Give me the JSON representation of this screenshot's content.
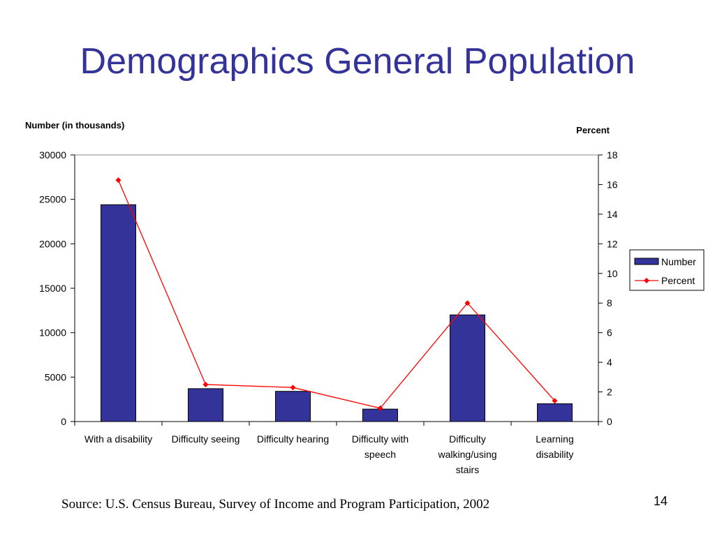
{
  "slide": {
    "title": "Demographics General Population",
    "source": "Source: U.S. Census Bureau, Survey of Income and Program Participation, 2002",
    "page_number": "14"
  },
  "chart_data": {
    "type": "bar+line",
    "categories": [
      [
        "With a disability"
      ],
      [
        "Difficulty seeing"
      ],
      [
        "Difficulty hearing"
      ],
      [
        "Difficulty with",
        "speech"
      ],
      [
        "Difficulty",
        "walking/using",
        "stairs"
      ],
      [
        "Learning",
        "disability"
      ]
    ],
    "series": [
      {
        "name": "Number",
        "type": "bar",
        "axis": "left",
        "color": "#333399",
        "values": [
          24400,
          3700,
          3400,
          1400,
          12000,
          2000
        ]
      },
      {
        "name": "Percent",
        "type": "line",
        "axis": "right",
        "color": "#ff0000",
        "values": [
          16.3,
          2.5,
          2.3,
          0.9,
          8.0,
          1.4
        ]
      }
    ],
    "ylabel_left": "Number (in thousands)",
    "ylabel_right": "Percent",
    "ylim_left": [
      0,
      30000
    ],
    "yticks_left": [
      0,
      5000,
      10000,
      15000,
      20000,
      25000,
      30000
    ],
    "ylim_right": [
      0,
      18
    ],
    "yticks_right": [
      0,
      2,
      4,
      6,
      8,
      10,
      12,
      14,
      16,
      18
    ],
    "legend": "right",
    "grid": false
  }
}
